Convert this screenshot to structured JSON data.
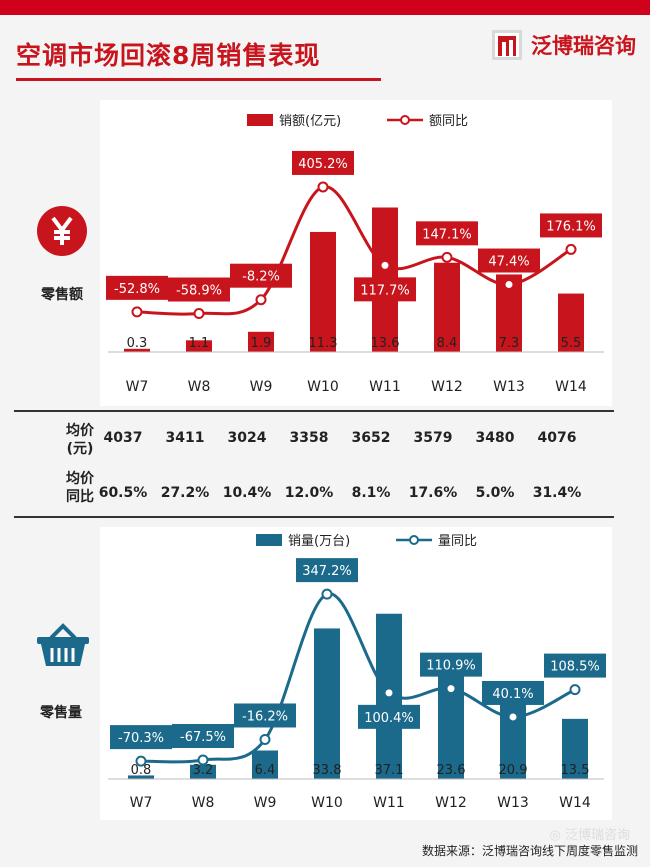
{
  "page": {
    "title": "空调市场回滚8周销售表现",
    "brand": "泛博瑞咨询",
    "wechat": "泛博瑞咨询",
    "source": "数据来源：泛博瑞咨询线下周度零售监测",
    "colors": {
      "accent": "#c8151d",
      "blue": "#1b6a8c"
    }
  },
  "sales": {
    "side_label": "零售额",
    "icon": "yen-icon"
  },
  "volume": {
    "side_label": "零售量",
    "icon": "basket-icon"
  },
  "table": {
    "header_price": "均价\n(元)",
    "header_yoy": "均价\n同比",
    "avg_price": [
      "4037",
      "3411",
      "3024",
      "3358",
      "3652",
      "3579",
      "3480",
      "4076"
    ],
    "avg_price_yoy": [
      "60.5%",
      "27.2%",
      "10.4%",
      "12.0%",
      "8.1%",
      "17.6%",
      "5.0%",
      "31.4%"
    ]
  },
  "chart_data": [
    {
      "type": "bar",
      "name": "sales",
      "categories": [
        "W7",
        "W8",
        "W9",
        "W10",
        "W11",
        "W12",
        "W13",
        "W14"
      ],
      "series": [
        {
          "name": "销额(亿元)",
          "type": "bar",
          "values": [
            0.3,
            1.1,
            1.9,
            11.3,
            13.6,
            8.4,
            7.3,
            5.5
          ],
          "labels": [
            "0.3",
            "1.1",
            "1.9",
            "11.3",
            "13.6",
            "8.4",
            "7.3",
            "5.5"
          ]
        },
        {
          "name": "额同比",
          "type": "line",
          "values": [
            -52.8,
            -58.9,
            -8.2,
            405.2,
            117.7,
            147.1,
            47.4,
            176.1
          ],
          "labels": [
            "-52.8%",
            "-58.9%",
            "-8.2%",
            "405.2%",
            "117.7%",
            "147.1%",
            "47.4%",
            "176.1%"
          ]
        }
      ],
      "bar_ylim": [
        0,
        16
      ],
      "line_ylim": [
        -200,
        460
      ],
      "color": "#c8151d"
    },
    {
      "type": "bar",
      "name": "volume",
      "categories": [
        "W7",
        "W8",
        "W9",
        "W10",
        "W11",
        "W12",
        "W13",
        "W14"
      ],
      "series": [
        {
          "name": "销量(万台)",
          "type": "bar",
          "values": [
            0.8,
            3.2,
            6.4,
            33.8,
            37.1,
            23.6,
            20.9,
            13.5
          ],
          "labels": [
            "0.8",
            "3.2",
            "6.4",
            "33.8",
            "37.1",
            "23.6",
            "20.9",
            "13.5"
          ]
        },
        {
          "name": "量同比",
          "type": "line",
          "values": [
            -70.3,
            -67.5,
            -16.2,
            347.2,
            100.4,
            110.9,
            40.1,
            108.5
          ],
          "labels": [
            "-70.3%",
            "-67.5%",
            "-16.2%",
            "347.2%",
            "100.4%",
            "110.9%",
            "40.1%",
            "108.5%"
          ]
        }
      ],
      "bar_ylim": [
        0,
        44
      ],
      "line_ylim": [
        -155,
        395
      ],
      "color": "#1b6a8c"
    }
  ]
}
